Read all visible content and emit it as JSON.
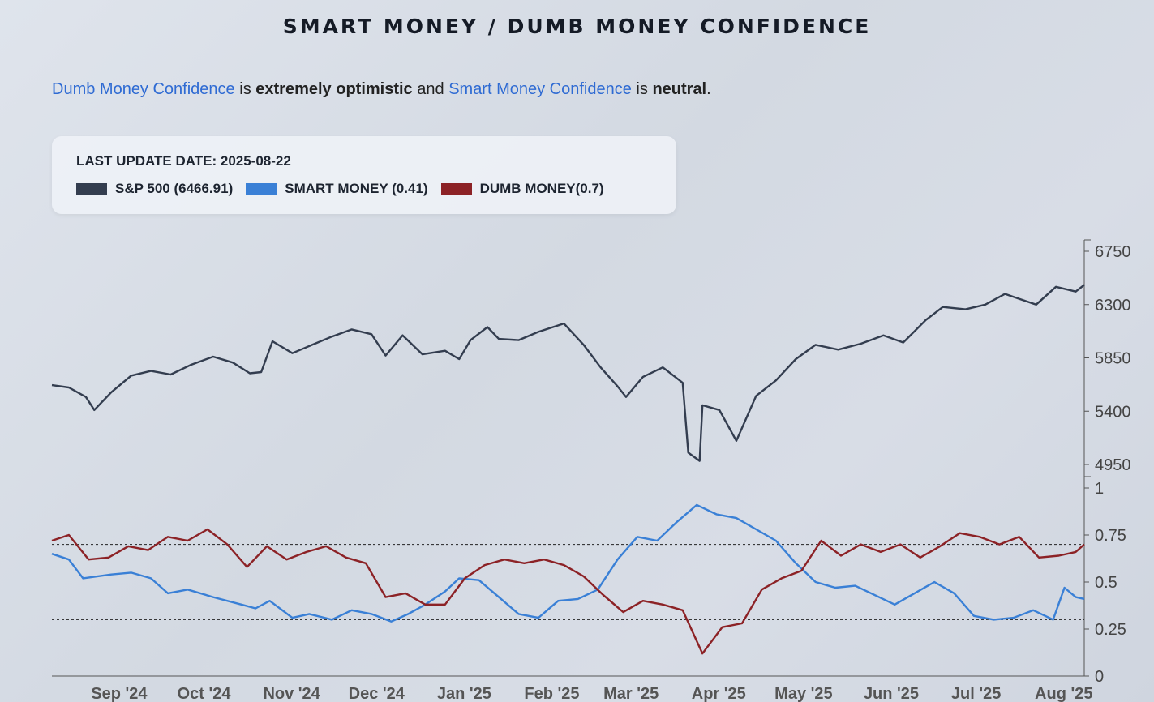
{
  "title": "SMART MONEY / DUMB MONEY CONFIDENCE",
  "summary": {
    "dumb_link": "Dumb Money Confidence",
    "is1": "is",
    "dumb_state": "extremely optimistic",
    "and": "and",
    "smart_link": "Smart Money Confidence",
    "is2": "is",
    "smart_state": "neutral",
    "period": "."
  },
  "legend": {
    "update_label": "LAST UPDATE DATE: 2025-08-22",
    "items": [
      {
        "label": "S&P 500 (6466.91)",
        "color": "#333d4f"
      },
      {
        "label": "SMART MONEY (0.41)",
        "color": "#3a80d6"
      },
      {
        "label": "DUMB MONEY(0.7)",
        "color": "#8c2226"
      }
    ]
  },
  "chart_data": [
    {
      "type": "line",
      "title": "",
      "x_range": [
        "2024-08-22",
        "2025-08-22"
      ],
      "y_ticks": [
        "6750",
        "6300",
        "5850",
        "5400",
        "4950"
      ],
      "ylim": [
        4850,
        6800
      ],
      "series": [
        {
          "name": "S&P 500",
          "color": "#333d4f",
          "points": [
            [
              "2024-08-22",
              5620
            ],
            [
              "2024-08-28",
              5600
            ],
            [
              "2024-09-03",
              5520
            ],
            [
              "2024-09-06",
              5410
            ],
            [
              "2024-09-12",
              5560
            ],
            [
              "2024-09-19",
              5700
            ],
            [
              "2024-09-26",
              5740
            ],
            [
              "2024-10-03",
              5710
            ],
            [
              "2024-10-10",
              5790
            ],
            [
              "2024-10-18",
              5860
            ],
            [
              "2024-10-25",
              5810
            ],
            [
              "2024-10-31",
              5720
            ],
            [
              "2024-11-04",
              5730
            ],
            [
              "2024-11-08",
              5990
            ],
            [
              "2024-11-15",
              5890
            ],
            [
              "2024-11-22",
              5960
            ],
            [
              "2024-11-29",
              6030
            ],
            [
              "2024-12-06",
              6090
            ],
            [
              "2024-12-13",
              6050
            ],
            [
              "2024-12-18",
              5870
            ],
            [
              "2024-12-24",
              6040
            ],
            [
              "2024-12-31",
              5880
            ],
            [
              "2025-01-08",
              5910
            ],
            [
              "2025-01-13",
              5840
            ],
            [
              "2025-01-17",
              6000
            ],
            [
              "2025-01-23",
              6110
            ],
            [
              "2025-01-27",
              6010
            ],
            [
              "2025-02-03",
              6000
            ],
            [
              "2025-02-10",
              6070
            ],
            [
              "2025-02-19",
              6140
            ],
            [
              "2025-02-26",
              5960
            ],
            [
              "2025-03-04",
              5770
            ],
            [
              "2025-03-10",
              5610
            ],
            [
              "2025-03-13",
              5520
            ],
            [
              "2025-03-19",
              5690
            ],
            [
              "2025-03-26",
              5770
            ],
            [
              "2025-04-02",
              5640
            ],
            [
              "2025-04-04",
              5050
            ],
            [
              "2025-04-08",
              4980
            ],
            [
              "2025-04-09",
              5450
            ],
            [
              "2025-04-15",
              5410
            ],
            [
              "2025-04-21",
              5150
            ],
            [
              "2025-04-28",
              5530
            ],
            [
              "2025-05-05",
              5660
            ],
            [
              "2025-05-12",
              5840
            ],
            [
              "2025-05-19",
              5960
            ],
            [
              "2025-05-27",
              5920
            ],
            [
              "2025-06-04",
              5970
            ],
            [
              "2025-06-12",
              6040
            ],
            [
              "2025-06-19",
              5980
            ],
            [
              "2025-06-27",
              6170
            ],
            [
              "2025-07-03",
              6280
            ],
            [
              "2025-07-11",
              6260
            ],
            [
              "2025-07-18",
              6300
            ],
            [
              "2025-07-25",
              6390
            ],
            [
              "2025-07-31",
              6340
            ],
            [
              "2025-08-05",
              6300
            ],
            [
              "2025-08-12",
              6450
            ],
            [
              "2025-08-19",
              6410
            ],
            [
              "2025-08-22",
              6466.91
            ]
          ]
        }
      ]
    },
    {
      "type": "line",
      "title": "",
      "x_range": [
        "2024-08-22",
        "2025-08-22"
      ],
      "x_ticks": [
        "Sep '24",
        "Oct '24",
        "Nov '24",
        "Dec '24",
        "Jan '25",
        "Feb '25",
        "Mar '25",
        "Apr '25",
        "May '25",
        "Jun '25",
        "Jul '25",
        "Aug '25"
      ],
      "y_ticks": [
        "1",
        "0.75",
        "0.5",
        "0.25",
        "0"
      ],
      "ylim": [
        0,
        1
      ],
      "reference_lines": [
        0.7,
        0.3
      ],
      "series": [
        {
          "name": "SMART MONEY",
          "color": "#3a80d6",
          "points": [
            [
              "2024-08-22",
              0.65
            ],
            [
              "2024-08-28",
              0.62
            ],
            [
              "2024-09-02",
              0.52
            ],
            [
              "2024-09-12",
              0.54
            ],
            [
              "2024-09-19",
              0.55
            ],
            [
              "2024-09-26",
              0.52
            ],
            [
              "2024-10-02",
              0.44
            ],
            [
              "2024-10-09",
              0.46
            ],
            [
              "2024-10-18",
              0.42
            ],
            [
              "2024-10-28",
              0.38
            ],
            [
              "2024-11-02",
              0.36
            ],
            [
              "2024-11-07",
              0.4
            ],
            [
              "2024-11-15",
              0.31
            ],
            [
              "2024-11-21",
              0.33
            ],
            [
              "2024-11-29",
              0.3
            ],
            [
              "2024-12-06",
              0.35
            ],
            [
              "2024-12-13",
              0.33
            ],
            [
              "2024-12-20",
              0.29
            ],
            [
              "2024-12-26",
              0.33
            ],
            [
              "2025-01-01",
              0.38
            ],
            [
              "2025-01-08",
              0.45
            ],
            [
              "2025-01-13",
              0.52
            ],
            [
              "2025-01-20",
              0.51
            ],
            [
              "2025-01-27",
              0.42
            ],
            [
              "2025-02-03",
              0.33
            ],
            [
              "2025-02-10",
              0.31
            ],
            [
              "2025-02-17",
              0.4
            ],
            [
              "2025-02-24",
              0.41
            ],
            [
              "2025-03-03",
              0.46
            ],
            [
              "2025-03-10",
              0.62
            ],
            [
              "2025-03-17",
              0.74
            ],
            [
              "2025-03-24",
              0.72
            ],
            [
              "2025-03-31",
              0.82
            ],
            [
              "2025-04-07",
              0.91
            ],
            [
              "2025-04-14",
              0.86
            ],
            [
              "2025-04-21",
              0.84
            ],
            [
              "2025-04-28",
              0.78
            ],
            [
              "2025-05-05",
              0.72
            ],
            [
              "2025-05-12",
              0.6
            ],
            [
              "2025-05-19",
              0.5
            ],
            [
              "2025-05-26",
              0.47
            ],
            [
              "2025-06-02",
              0.48
            ],
            [
              "2025-06-09",
              0.43
            ],
            [
              "2025-06-16",
              0.38
            ],
            [
              "2025-06-23",
              0.44
            ],
            [
              "2025-06-30",
              0.5
            ],
            [
              "2025-07-07",
              0.44
            ],
            [
              "2025-07-14",
              0.32
            ],
            [
              "2025-07-21",
              0.3
            ],
            [
              "2025-07-28",
              0.31
            ],
            [
              "2025-08-04",
              0.35
            ],
            [
              "2025-08-11",
              0.3
            ],
            [
              "2025-08-15",
              0.47
            ],
            [
              "2025-08-19",
              0.42
            ],
            [
              "2025-08-22",
              0.41
            ]
          ]
        },
        {
          "name": "DUMB MONEY",
          "color": "#8c2226",
          "points": [
            [
              "2024-08-22",
              0.72
            ],
            [
              "2024-08-28",
              0.75
            ],
            [
              "2024-09-04",
              0.62
            ],
            [
              "2024-09-11",
              0.63
            ],
            [
              "2024-09-18",
              0.69
            ],
            [
              "2024-09-25",
              0.67
            ],
            [
              "2024-10-02",
              0.74
            ],
            [
              "2024-10-09",
              0.72
            ],
            [
              "2024-10-16",
              0.78
            ],
            [
              "2024-10-23",
              0.7
            ],
            [
              "2024-10-30",
              0.58
            ],
            [
              "2024-11-06",
              0.69
            ],
            [
              "2024-11-13",
              0.62
            ],
            [
              "2024-11-20",
              0.66
            ],
            [
              "2024-11-27",
              0.69
            ],
            [
              "2024-12-04",
              0.63
            ],
            [
              "2024-12-11",
              0.6
            ],
            [
              "2024-12-18",
              0.42
            ],
            [
              "2024-12-25",
              0.44
            ],
            [
              "2025-01-01",
              0.38
            ],
            [
              "2025-01-08",
              0.38
            ],
            [
              "2025-01-15",
              0.52
            ],
            [
              "2025-01-22",
              0.59
            ],
            [
              "2025-01-29",
              0.62
            ],
            [
              "2025-02-05",
              0.6
            ],
            [
              "2025-02-12",
              0.62
            ],
            [
              "2025-02-19",
              0.59
            ],
            [
              "2025-02-26",
              0.53
            ],
            [
              "2025-03-05",
              0.43
            ],
            [
              "2025-03-12",
              0.34
            ],
            [
              "2025-03-19",
              0.4
            ],
            [
              "2025-03-26",
              0.38
            ],
            [
              "2025-04-02",
              0.35
            ],
            [
              "2025-04-09",
              0.12
            ],
            [
              "2025-04-16",
              0.26
            ],
            [
              "2025-04-23",
              0.28
            ],
            [
              "2025-04-30",
              0.46
            ],
            [
              "2025-05-07",
              0.52
            ],
            [
              "2025-05-14",
              0.56
            ],
            [
              "2025-05-21",
              0.72
            ],
            [
              "2025-05-28",
              0.64
            ],
            [
              "2025-06-04",
              0.7
            ],
            [
              "2025-06-11",
              0.66
            ],
            [
              "2025-06-18",
              0.7
            ],
            [
              "2025-06-25",
              0.63
            ],
            [
              "2025-07-02",
              0.69
            ],
            [
              "2025-07-09",
              0.76
            ],
            [
              "2025-07-16",
              0.74
            ],
            [
              "2025-07-23",
              0.7
            ],
            [
              "2025-07-30",
              0.74
            ],
            [
              "2025-08-06",
              0.63
            ],
            [
              "2025-08-13",
              0.64
            ],
            [
              "2025-08-19",
              0.66
            ],
            [
              "2025-08-22",
              0.7
            ]
          ]
        }
      ]
    }
  ]
}
